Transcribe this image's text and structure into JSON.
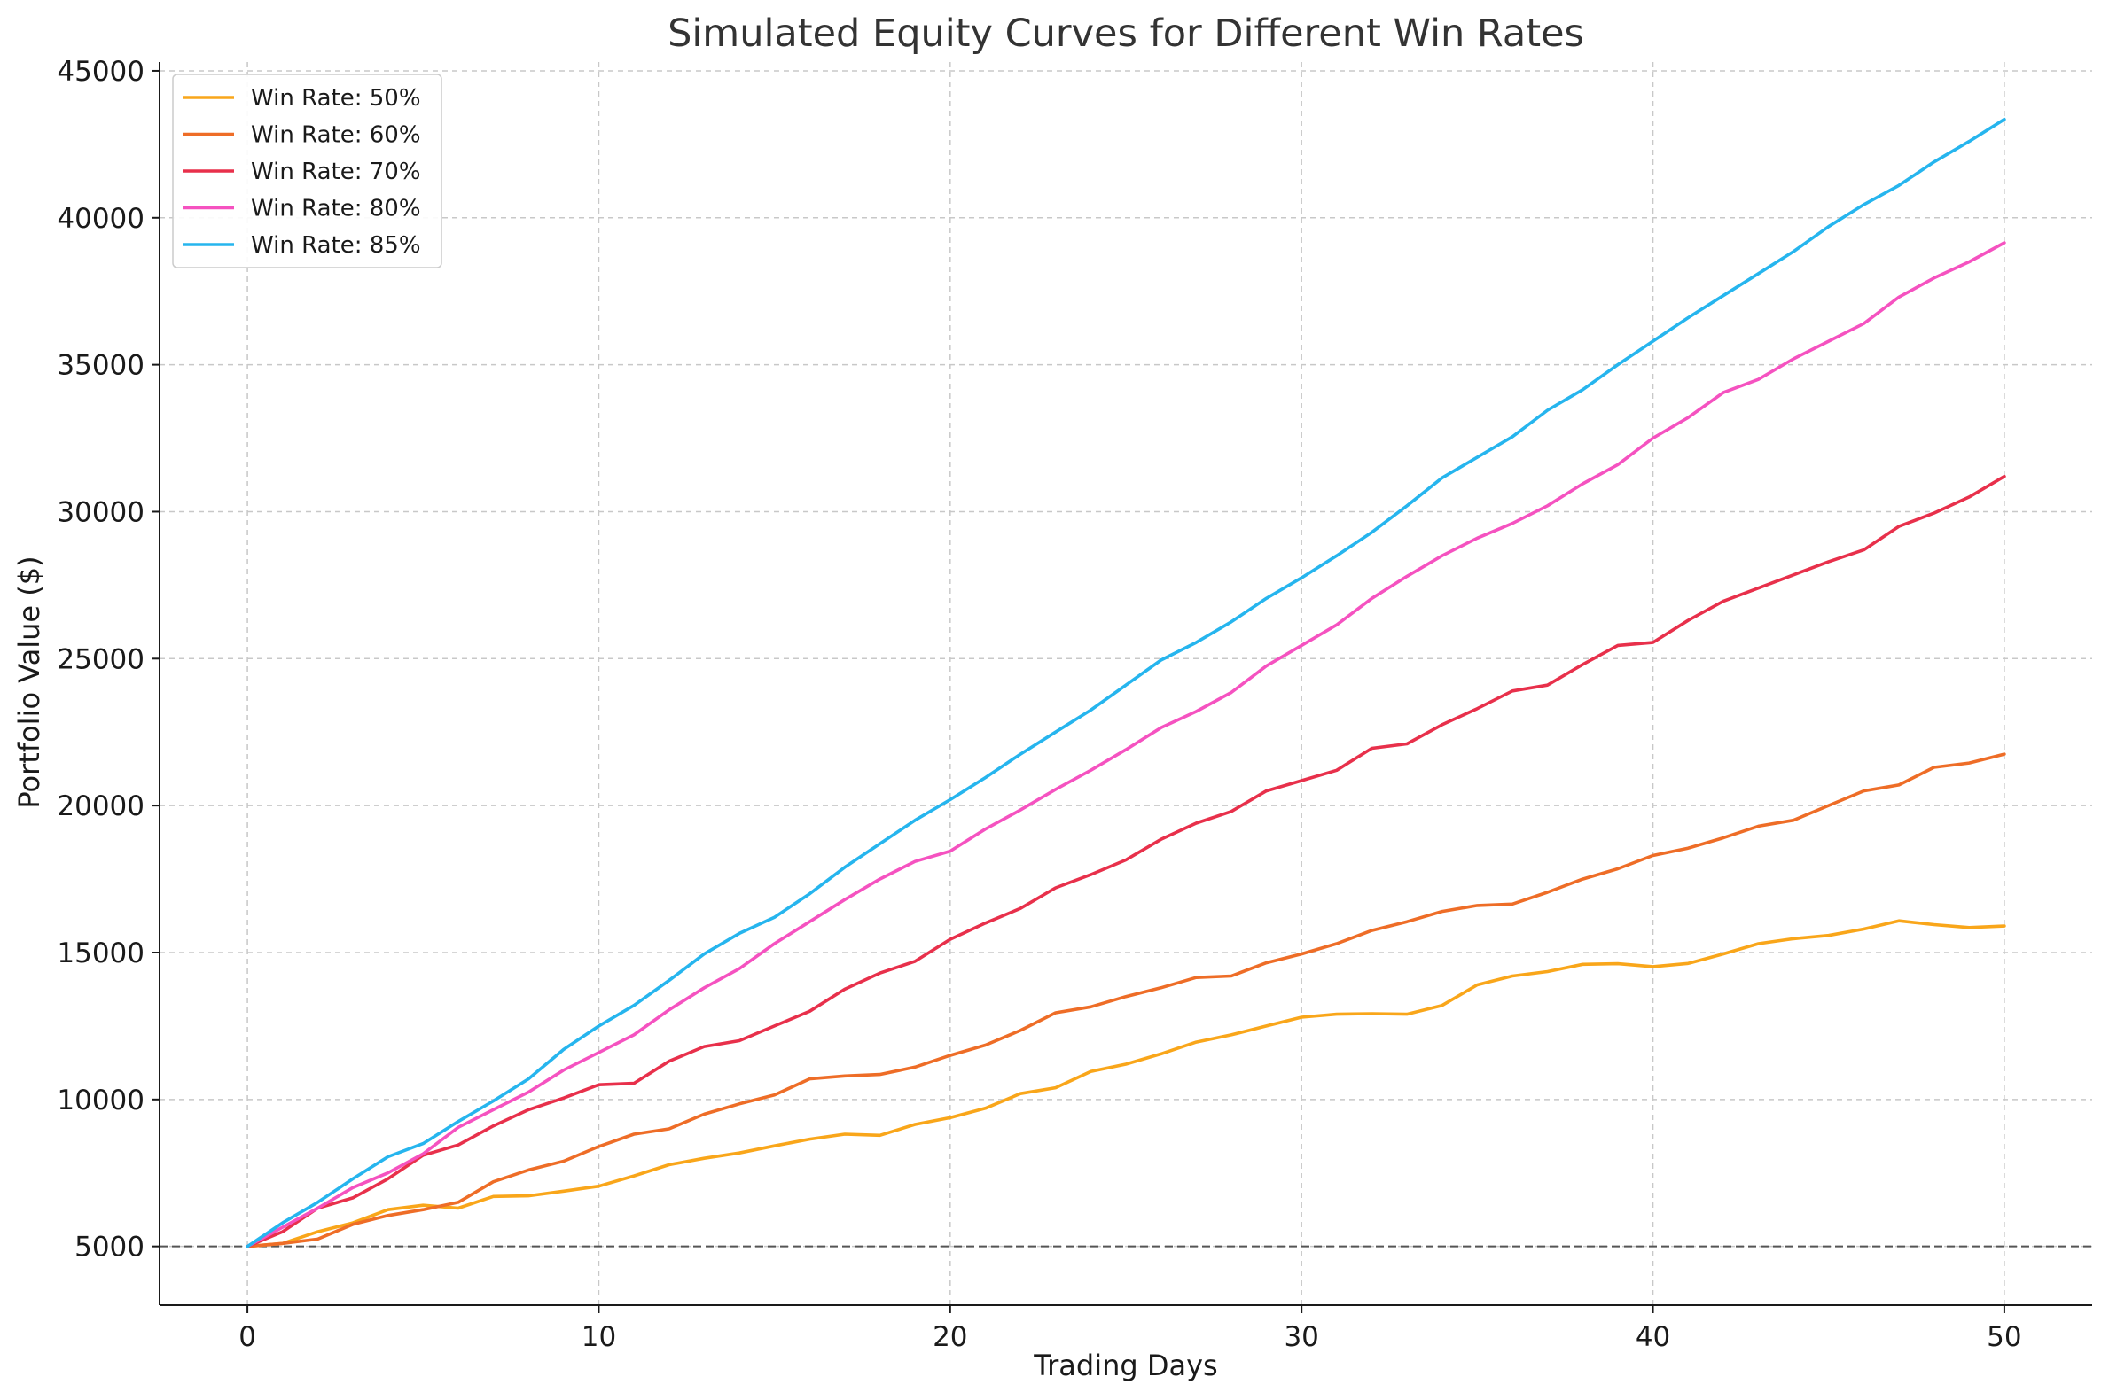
{
  "chart_data": {
    "type": "line",
    "title": "Simulated Equity Curves for Different Win Rates",
    "xlabel": "Trading Days",
    "ylabel": "Portfolio Value ($)",
    "xlim": [
      -2.5,
      52.5
    ],
    "ylim": [
      3000,
      45300
    ],
    "x_ticks": [
      0,
      10,
      20,
      30,
      40,
      50
    ],
    "y_ticks": [
      5000,
      10000,
      15000,
      20000,
      25000,
      30000,
      35000,
      40000,
      45000
    ],
    "grid": true,
    "legend_position": "top-left",
    "reference_line": {
      "y": 5000,
      "style": "dashed",
      "color": "#555555"
    },
    "x": [
      0,
      1,
      2,
      3,
      4,
      5,
      6,
      7,
      8,
      9,
      10,
      11,
      12,
      13,
      14,
      15,
      16,
      17,
      18,
      19,
      20,
      21,
      22,
      23,
      24,
      25,
      26,
      27,
      28,
      29,
      30,
      31,
      32,
      33,
      34,
      35,
      36,
      37,
      38,
      39,
      40,
      41,
      42,
      43,
      44,
      45,
      46,
      47,
      48,
      49,
      50
    ],
    "series": [
      {
        "name": "Win Rate: 50%",
        "color": "#f9a61a",
        "values": [
          5000,
          5100,
          5500,
          5800,
          6250,
          6400,
          6300,
          6700,
          6720,
          6880,
          7050,
          7400,
          7780,
          8000,
          8180,
          8420,
          8650,
          8820,
          8780,
          9150,
          9380,
          9700,
          10200,
          10400,
          10950,
          11200,
          11550,
          11950,
          12200,
          12500,
          12800,
          12900,
          12920,
          12900,
          13200,
          13900,
          14200,
          14350,
          14600,
          14620,
          14520,
          14630,
          14950,
          15300,
          15470,
          15580,
          15800,
          16080,
          15950,
          15850,
          15900
        ]
      },
      {
        "name": "Win Rate: 60%",
        "color": "#ee6d27",
        "values": [
          5000,
          5100,
          5250,
          5750,
          6050,
          6250,
          6500,
          7200,
          7600,
          7900,
          8400,
          8820,
          9000,
          9500,
          9850,
          10150,
          10700,
          10800,
          10850,
          11100,
          11500,
          11850,
          12350,
          12950,
          13150,
          13500,
          13800,
          14150,
          14200,
          14650,
          14950,
          15300,
          15750,
          16050,
          16400,
          16600,
          16650,
          17050,
          17500,
          17850,
          18300,
          18550,
          18900,
          19300,
          19500,
          20000,
          20500,
          20700,
          21300,
          21450,
          21750
        ]
      },
      {
        "name": "Win Rate: 70%",
        "color": "#e8304b",
        "values": [
          5000,
          5500,
          6300,
          6650,
          7300,
          8100,
          8450,
          9100,
          9650,
          10050,
          10500,
          10550,
          11300,
          11800,
          12000,
          12500,
          13000,
          13750,
          14300,
          14700,
          15450,
          16000,
          16500,
          17200,
          17650,
          18150,
          18850,
          19400,
          19800,
          20500,
          20850,
          21200,
          21950,
          22100,
          22750,
          23300,
          23900,
          24100,
          24800,
          25450,
          25550,
          26300,
          26950,
          27400,
          27850,
          28300,
          28700,
          29500,
          29950,
          30500,
          31200
        ]
      },
      {
        "name": "Win Rate: 80%",
        "color": "#f552c0",
        "values": [
          5000,
          5650,
          6300,
          7000,
          7500,
          8150,
          9050,
          9650,
          10250,
          11000,
          11600,
          12200,
          13050,
          13800,
          14450,
          15300,
          16050,
          16800,
          17500,
          18100,
          18450,
          19200,
          19850,
          20550,
          21200,
          21900,
          22650,
          23200,
          23850,
          24750,
          25450,
          26150,
          27050,
          27800,
          28500,
          29100,
          29600,
          30200,
          30950,
          31600,
          32500,
          33200,
          34050,
          34500,
          35200,
          35800,
          36400,
          37300,
          37950,
          38500,
          39150
        ]
      },
      {
        "name": "Win Rate: 85%",
        "color": "#26b5ee",
        "values": [
          5000,
          5800,
          6500,
          7300,
          8050,
          8500,
          9250,
          9950,
          10700,
          11700,
          12500,
          13200,
          14050,
          14950,
          15650,
          16200,
          17000,
          17900,
          18700,
          19500,
          20200,
          20950,
          21750,
          22500,
          23250,
          24100,
          24950,
          25550,
          26250,
          27050,
          27750,
          28500,
          29300,
          30200,
          31150,
          31850,
          32550,
          33450,
          34150,
          35000,
          35800,
          36600,
          37350,
          38100,
          38850,
          39700,
          40450,
          41100,
          41900,
          42600,
          43350
        ]
      }
    ]
  }
}
